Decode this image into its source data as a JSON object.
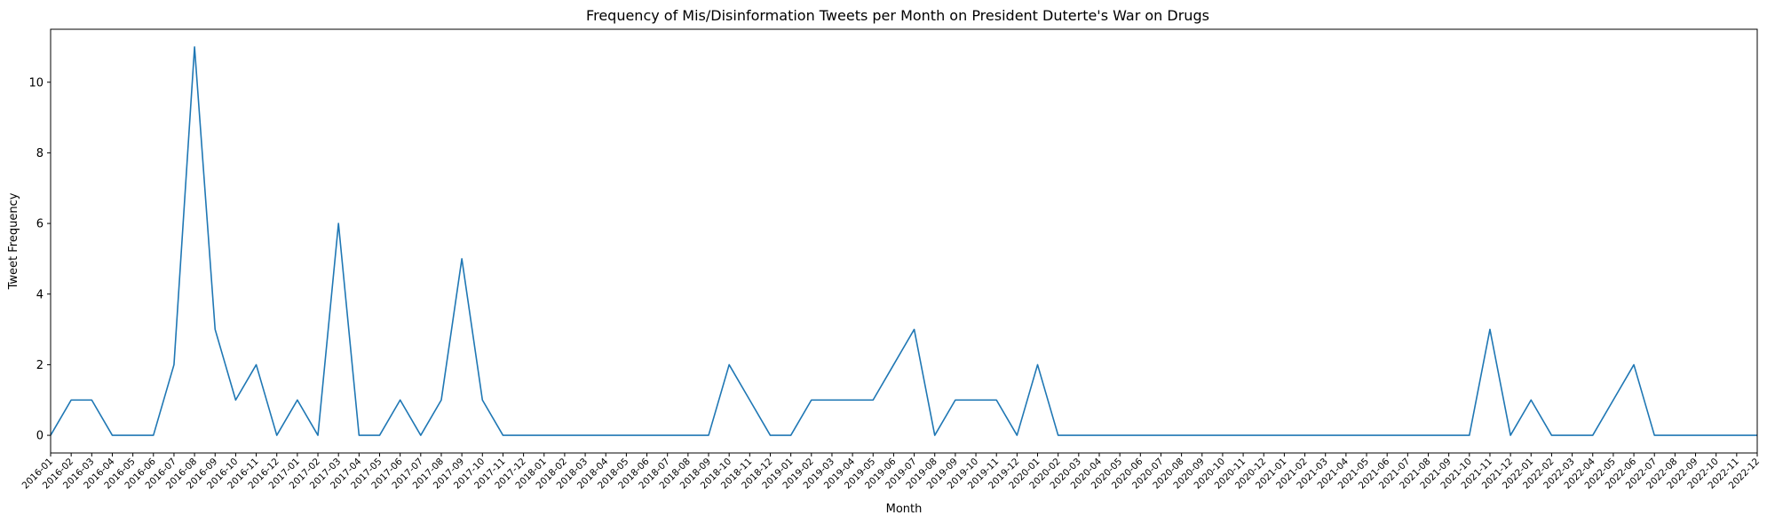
{
  "chart_data": {
    "type": "line",
    "title": "Frequency of Mis/Disinformation Tweets per Month on President Duterte's War on Drugs",
    "xlabel": "Month",
    "ylabel": "Tweet Frequency",
    "ylim": [
      -0.5,
      11.5
    ],
    "yticks": [
      0,
      2,
      4,
      6,
      8,
      10
    ],
    "grid": false,
    "series": [
      {
        "name": "Tweet Frequency",
        "color": "#1f77b4",
        "x": [
          "2016-01",
          "2016-02",
          "2016-03",
          "2016-04",
          "2016-05",
          "2016-06",
          "2016-07",
          "2016-08",
          "2016-09",
          "2016-10",
          "2016-11",
          "2016-12",
          "2017-01",
          "2017-02",
          "2017-03",
          "2017-04",
          "2017-05",
          "2017-06",
          "2017-07",
          "2017-08",
          "2017-09",
          "2017-10",
          "2017-11",
          "2017-12",
          "2018-01",
          "2018-02",
          "2018-03",
          "2018-04",
          "2018-05",
          "2018-06",
          "2018-07",
          "2018-08",
          "2018-09",
          "2018-10",
          "2018-11",
          "2018-12",
          "2019-01",
          "2019-02",
          "2019-03",
          "2019-04",
          "2019-05",
          "2019-06",
          "2019-07",
          "2019-08",
          "2019-09",
          "2019-10",
          "2019-11",
          "2019-12",
          "2020-01",
          "2020-02",
          "2020-03",
          "2020-04",
          "2020-05",
          "2020-06",
          "2020-07",
          "2020-08",
          "2020-09",
          "2020-10",
          "2020-11",
          "2020-12",
          "2021-01",
          "2021-02",
          "2021-03",
          "2021-04",
          "2021-05",
          "2021-06",
          "2021-07",
          "2021-08",
          "2021-09",
          "2021-10",
          "2021-11",
          "2021-12",
          "2022-01",
          "2022-02",
          "2022-03",
          "2022-04",
          "2022-05",
          "2022-06",
          "2022-07",
          "2022-08",
          "2022-09",
          "2022-10",
          "2022-11",
          "2022-12"
        ],
        "values": [
          0,
          1,
          1,
          0,
          0,
          0,
          2,
          11,
          3,
          1,
          2,
          0,
          1,
          0,
          6,
          0,
          0,
          1,
          0,
          1,
          5,
          1,
          0,
          0,
          0,
          0,
          0,
          0,
          0,
          0,
          0,
          0,
          0,
          2,
          1,
          0,
          0,
          1,
          1,
          1,
          1,
          2,
          3,
          0,
          1,
          1,
          1,
          0,
          2,
          0,
          0,
          0,
          0,
          0,
          0,
          0,
          0,
          0,
          0,
          0,
          0,
          0,
          0,
          0,
          0,
          0,
          0,
          0,
          0,
          0,
          3,
          0,
          1,
          0,
          0,
          0,
          1,
          2,
          0,
          0,
          0,
          0,
          0,
          0
        ]
      }
    ]
  }
}
